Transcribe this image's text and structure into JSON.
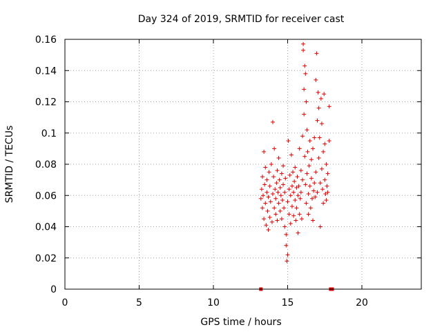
{
  "chart_data": {
    "type": "scatter",
    "title": "Day 324 of 2019, SRMTID for receiver cast",
    "xlabel": "GPS time / hours",
    "ylabel": "SRMTID / TECUs",
    "xlim": [
      0,
      24
    ],
    "ylim": [
      0,
      0.16
    ],
    "xticks": [
      0,
      5,
      10,
      15,
      20
    ],
    "xtick_labels": [
      "0",
      "5",
      "10",
      "15",
      "20"
    ],
    "yticks": [
      0,
      0.02,
      0.04,
      0.06,
      0.08,
      0.1,
      0.12,
      0.14,
      0.16
    ],
    "ytick_labels": [
      "0",
      "0.02",
      "0.04",
      "0.06",
      "0.08",
      "0.1",
      "0.12",
      "0.14",
      "0.16"
    ],
    "grid": true,
    "marker": "plus",
    "color": "#dd0000",
    "series": [
      {
        "name": "SRMTID",
        "points": [
          [
            13.2,
            0.058
          ],
          [
            13.25,
            0.064
          ],
          [
            13.3,
            0.052
          ],
          [
            13.3,
            0.072
          ],
          [
            13.35,
            0.06
          ],
          [
            13.4,
            0.088
          ],
          [
            13.4,
            0.045
          ],
          [
            13.45,
            0.067
          ],
          [
            13.5,
            0.078
          ],
          [
            13.5,
            0.055
          ],
          [
            13.55,
            0.041
          ],
          [
            13.6,
            0.062
          ],
          [
            13.6,
            0.07
          ],
          [
            13.65,
            0.05
          ],
          [
            13.7,
            0.038
          ],
          [
            13.7,
            0.059
          ],
          [
            13.75,
            0.075
          ],
          [
            13.8,
            0.046
          ],
          [
            13.8,
            0.066
          ],
          [
            13.85,
            0.056
          ],
          [
            13.9,
            0.08
          ],
          [
            13.95,
            0.043
          ],
          [
            14.0,
            0.107
          ],
          [
            14.0,
            0.061
          ],
          [
            14.05,
            0.072
          ],
          [
            14.1,
            0.052
          ],
          [
            14.1,
            0.09
          ],
          [
            14.15,
            0.064
          ],
          [
            14.2,
            0.048
          ],
          [
            14.2,
            0.058
          ],
          [
            14.25,
            0.068
          ],
          [
            14.3,
            0.076
          ],
          [
            14.3,
            0.044
          ],
          [
            14.35,
            0.062
          ],
          [
            14.4,
            0.055
          ],
          [
            14.4,
            0.084
          ],
          [
            14.45,
            0.07
          ],
          [
            14.5,
            0.05
          ],
          [
            14.5,
            0.065
          ],
          [
            14.55,
            0.06
          ],
          [
            14.6,
            0.074
          ],
          [
            14.6,
            0.045
          ],
          [
            14.65,
            0.057
          ],
          [
            14.7,
            0.067
          ],
          [
            14.7,
            0.079
          ],
          [
            14.75,
            0.052
          ],
          [
            14.8,
            0.062
          ],
          [
            14.8,
            0.04
          ],
          [
            14.85,
            0.071
          ],
          [
            14.9,
            0.035
          ],
          [
            14.9,
            0.028
          ],
          [
            14.95,
            0.018
          ],
          [
            15.0,
            0.022
          ],
          [
            15.0,
            0.056
          ],
          [
            15.05,
            0.095
          ],
          [
            15.1,
            0.064
          ],
          [
            15.1,
            0.048
          ],
          [
            15.15,
            0.073
          ],
          [
            15.2,
            0.06
          ],
          [
            15.2,
            0.042
          ],
          [
            15.25,
            0.086
          ],
          [
            15.3,
            0.066
          ],
          [
            15.3,
            0.053
          ],
          [
            15.35,
            0.075
          ],
          [
            15.4,
            0.047
          ],
          [
            15.4,
            0.062
          ],
          [
            15.45,
            0.069
          ],
          [
            15.5,
            0.057
          ],
          [
            15.5,
            0.078
          ],
          [
            15.55,
            0.044
          ],
          [
            15.6,
            0.065
          ],
          [
            15.6,
            0.052
          ],
          [
            15.65,
            0.072
          ],
          [
            15.7,
            0.06
          ],
          [
            15.7,
            0.036
          ],
          [
            15.75,
            0.066
          ],
          [
            15.8,
            0.09
          ],
          [
            15.8,
            0.048
          ],
          [
            15.85,
            0.058
          ],
          [
            15.9,
            0.076
          ],
          [
            15.9,
            0.062
          ],
          [
            15.95,
            0.045
          ],
          [
            16.0,
            0.098
          ],
          [
            16.0,
            0.07
          ],
          [
            16.05,
            0.157
          ],
          [
            16.05,
            0.153
          ],
          [
            16.1,
            0.128
          ],
          [
            16.1,
            0.112
          ],
          [
            16.15,
            0.143
          ],
          [
            16.15,
            0.085
          ],
          [
            16.2,
            0.138
          ],
          [
            16.2,
            0.067
          ],
          [
            16.25,
            0.12
          ],
          [
            16.25,
            0.055
          ],
          [
            16.3,
            0.102
          ],
          [
            16.3,
            0.074
          ],
          [
            16.35,
            0.088
          ],
          [
            16.4,
            0.061
          ],
          [
            16.4,
            0.048
          ],
          [
            16.45,
            0.079
          ],
          [
            16.5,
            0.095
          ],
          [
            16.5,
            0.066
          ],
          [
            16.55,
            0.052
          ],
          [
            16.6,
            0.083
          ],
          [
            16.6,
            0.071
          ],
          [
            16.65,
            0.058
          ],
          [
            16.7,
            0.09
          ],
          [
            16.7,
            0.044
          ],
          [
            16.75,
            0.063
          ],
          [
            16.8,
            0.068
          ],
          [
            16.8,
            0.097
          ],
          [
            16.85,
            0.059
          ],
          [
            16.9,
            0.134
          ],
          [
            16.9,
            0.075
          ],
          [
            16.95,
            0.151
          ],
          [
            17.0,
            0.108
          ],
          [
            17.0,
            0.062
          ],
          [
            17.05,
            0.126
          ],
          [
            17.1,
            0.116
          ],
          [
            17.1,
            0.084
          ],
          [
            17.15,
            0.097
          ],
          [
            17.2,
            0.068
          ],
          [
            17.2,
            0.04
          ],
          [
            17.25,
            0.122
          ],
          [
            17.3,
            0.106
          ],
          [
            17.3,
            0.077
          ],
          [
            17.35,
            0.064
          ],
          [
            17.4,
            0.088
          ],
          [
            17.4,
            0.055
          ],
          [
            17.45,
            0.125
          ],
          [
            17.5,
            0.093
          ],
          [
            17.5,
            0.07
          ],
          [
            17.55,
            0.061
          ],
          [
            17.6,
            0.08
          ],
          [
            17.6,
            0.057
          ],
          [
            17.65,
            0.066
          ],
          [
            17.7,
            0.074
          ],
          [
            17.7,
            0.062
          ],
          [
            17.8,
            0.117
          ],
          [
            17.8,
            0.095
          ]
        ],
        "zero_points": [
          [
            13.2,
            0
          ],
          [
            17.9,
            0
          ],
          [
            18.0,
            0
          ]
        ]
      }
    ]
  }
}
